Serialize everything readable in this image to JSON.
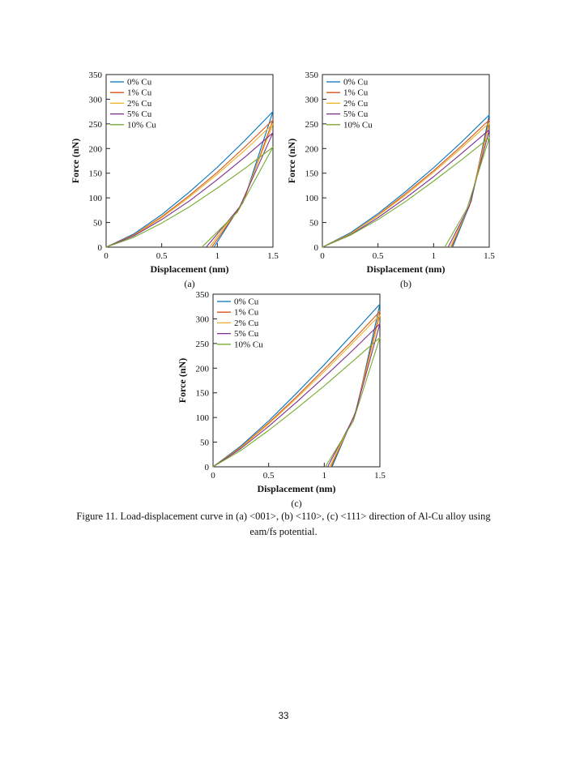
{
  "page": {
    "number": "33"
  },
  "caption": {
    "line1": "Figure 11. Load-displacement curve in (a) <001>, (b) <110>, (c) <111> direction of Al-Cu alloy using",
    "line2": "eam/fs potential."
  },
  "palette": {
    "blue": "#0072BD",
    "orange": "#D95319",
    "yellow": "#EDB120",
    "purple": "#7E2F8E",
    "green": "#77AC30"
  },
  "chart_data": [
    {
      "type": "line",
      "label": "(a)",
      "xlabel": "Displacement (nm)",
      "ylabel": "Force (nN)",
      "xlim": [
        0,
        1.5
      ],
      "ylim": [
        0,
        350
      ],
      "xtick_values": [
        0,
        0.5,
        1,
        1.5
      ],
      "xtick_labels": [
        "0",
        "0.5",
        "1",
        "1.5"
      ],
      "ytick_values": [
        0,
        50,
        100,
        150,
        200,
        250,
        300,
        350
      ],
      "ytick_labels": [
        "0",
        "50",
        "100",
        "150",
        "200",
        "250",
        "300",
        "350"
      ],
      "legend_position": "top-left",
      "series": [
        {
          "name": "0% Cu",
          "color": "#0072BD",
          "points": [
            [
              0,
              0
            ],
            [
              0.25,
              27
            ],
            [
              0.5,
              66
            ],
            [
              0.75,
              112
            ],
            [
              1,
              162
            ],
            [
              1.25,
              217
            ],
            [
              1.5,
              275
            ],
            [
              1.24,
              96
            ],
            [
              0.97,
              0
            ]
          ]
        },
        {
          "name": "1% Cu",
          "color": "#D95319",
          "points": [
            [
              0,
              0
            ],
            [
              0.25,
              25
            ],
            [
              0.5,
              62
            ],
            [
              0.75,
              105
            ],
            [
              1,
              152
            ],
            [
              1.25,
              204
            ],
            [
              1.5,
              258
            ],
            [
              1.23,
              90
            ],
            [
              0.95,
              0
            ]
          ]
        },
        {
          "name": "2% Cu",
          "color": "#EDB120",
          "points": [
            [
              0,
              0
            ],
            [
              0.25,
              24
            ],
            [
              0.5,
              60
            ],
            [
              0.75,
              102
            ],
            [
              1,
              148
            ],
            [
              1.25,
              197
            ],
            [
              1.5,
              250
            ],
            [
              1.22,
              88
            ],
            [
              0.93,
              0
            ]
          ]
        },
        {
          "name": "5% Cu",
          "color": "#7E2F8E",
          "points": [
            [
              0,
              0
            ],
            [
              0.25,
              23
            ],
            [
              0.5,
              56
            ],
            [
              0.75,
              94
            ],
            [
              1,
              137
            ],
            [
              1.25,
              183
            ],
            [
              1.5,
              232
            ],
            [
              1.2,
              81
            ],
            [
              0.9,
              0
            ]
          ]
        },
        {
          "name": "10% Cu",
          "color": "#77AC30",
          "points": [
            [
              0,
              0
            ],
            [
              0.25,
              20
            ],
            [
              0.5,
              49
            ],
            [
              0.75,
              82
            ],
            [
              1,
              120
            ],
            [
              1.25,
              160
            ],
            [
              1.5,
              203
            ],
            [
              1.18,
              71
            ],
            [
              0.86,
              0
            ]
          ]
        }
      ]
    },
    {
      "type": "line",
      "label": "(b)",
      "xlabel": "Displacement (nm)",
      "ylabel": "Force (nN)",
      "xlim": [
        0,
        1.5
      ],
      "ylim": [
        0,
        350
      ],
      "xtick_values": [
        0,
        0.5,
        1,
        1.5
      ],
      "xtick_labels": [
        "0",
        "0.5",
        "1",
        "1.5"
      ],
      "ytick_values": [
        0,
        50,
        100,
        150,
        200,
        250,
        300,
        350
      ],
      "ytick_labels": [
        "0",
        "50",
        "100",
        "150",
        "200",
        "250",
        "300",
        "350"
      ],
      "legend_position": "top-left",
      "series": [
        {
          "name": "0% Cu",
          "color": "#0072BD",
          "points": [
            [
              0,
              0
            ],
            [
              0.25,
              29
            ],
            [
              0.5,
              68
            ],
            [
              0.75,
              113
            ],
            [
              1,
              161
            ],
            [
              1.25,
              213
            ],
            [
              1.5,
              268
            ],
            [
              1.34,
              94
            ],
            [
              1.17,
              0
            ]
          ]
        },
        {
          "name": "1% Cu",
          "color": "#D95319",
          "points": [
            [
              0,
              0
            ],
            [
              0.25,
              27
            ],
            [
              0.5,
              65
            ],
            [
              0.75,
              109
            ],
            [
              1,
              155
            ],
            [
              1.25,
              205
            ],
            [
              1.5,
              258
            ],
            [
              1.33,
              90
            ],
            [
              1.16,
              0
            ]
          ]
        },
        {
          "name": "2% Cu",
          "color": "#EDB120",
          "points": [
            [
              0,
              0
            ],
            [
              0.25,
              27
            ],
            [
              0.5,
              64
            ],
            [
              0.75,
              106
            ],
            [
              1,
              152
            ],
            [
              1.25,
              201
            ],
            [
              1.5,
              252
            ],
            [
              1.33,
              88
            ],
            [
              1.15,
              0
            ]
          ]
        },
        {
          "name": "5% Cu",
          "color": "#7E2F8E",
          "points": [
            [
              0,
              0
            ],
            [
              0.25,
              25
            ],
            [
              0.5,
              60
            ],
            [
              0.75,
              100
            ],
            [
              1,
              143
            ],
            [
              1.25,
              190
            ],
            [
              1.5,
              238
            ],
            [
              1.32,
              83
            ],
            [
              1.13,
              0
            ]
          ]
        },
        {
          "name": "10% Cu",
          "color": "#77AC30",
          "points": [
            [
              0,
              0
            ],
            [
              0.25,
              24
            ],
            [
              0.5,
              56
            ],
            [
              0.75,
              93
            ],
            [
              1,
              134
            ],
            [
              1.25,
              177
            ],
            [
              1.5,
              222
            ],
            [
              1.3,
              78
            ],
            [
              1.1,
              0
            ]
          ]
        }
      ]
    },
    {
      "type": "line",
      "label": "(c)",
      "xlabel": "Displacement (nm)",
      "ylabel": "Force (nN)",
      "xlim": [
        0,
        1.5
      ],
      "ylim": [
        0,
        350
      ],
      "xtick_values": [
        0,
        0.5,
        1,
        1.5
      ],
      "xtick_labels": [
        "0",
        "0.5",
        "1",
        "1.5"
      ],
      "ytick_values": [
        0,
        50,
        100,
        150,
        200,
        250,
        300,
        350
      ],
      "ytick_labels": [
        "0",
        "50",
        "100",
        "150",
        "200",
        "250",
        "300",
        "350"
      ],
      "legend_position": "top-left",
      "series": [
        {
          "name": "0% Cu",
          "color": "#0072BD",
          "points": [
            [
              0,
              0
            ],
            [
              0.25,
              42
            ],
            [
              0.5,
              93
            ],
            [
              0.75,
              149
            ],
            [
              1,
              207
            ],
            [
              1.25,
              268
            ],
            [
              1.5,
              330
            ],
            [
              1.29,
              116
            ],
            [
              1.07,
              0
            ]
          ]
        },
        {
          "name": "1% Cu",
          "color": "#D95319",
          "points": [
            [
              0,
              0
            ],
            [
              0.25,
              40
            ],
            [
              0.5,
              89
            ],
            [
              0.75,
              142
            ],
            [
              1,
              198
            ],
            [
              1.25,
              255
            ],
            [
              1.5,
              315
            ],
            [
              1.28,
              110
            ],
            [
              1.06,
              0
            ]
          ]
        },
        {
          "name": "2% Cu",
          "color": "#EDB120",
          "points": [
            [
              0,
              0
            ],
            [
              0.25,
              39
            ],
            [
              0.5,
              87
            ],
            [
              0.75,
              139
            ],
            [
              1,
              193
            ],
            [
              1.25,
              250
            ],
            [
              1.5,
              308
            ],
            [
              1.28,
              108
            ],
            [
              1.05,
              0
            ]
          ]
        },
        {
          "name": "5% Cu",
          "color": "#7E2F8E",
          "points": [
            [
              0,
              0
            ],
            [
              0.25,
              37
            ],
            [
              0.5,
              82
            ],
            [
              0.75,
              131
            ],
            [
              1,
              182
            ],
            [
              1.25,
              235
            ],
            [
              1.5,
              290
            ],
            [
              1.27,
              102
            ],
            [
              1.03,
              0
            ]
          ]
        },
        {
          "name": "10% Cu",
          "color": "#77AC30",
          "points": [
            [
              0,
              0
            ],
            [
              0.25,
              33
            ],
            [
              0.5,
              74
            ],
            [
              0.75,
              118
            ],
            [
              1,
              164
            ],
            [
              1.25,
              213
            ],
            [
              1.5,
              262
            ],
            [
              1.26,
              92
            ],
            [
              1.01,
              0
            ]
          ]
        }
      ]
    }
  ]
}
